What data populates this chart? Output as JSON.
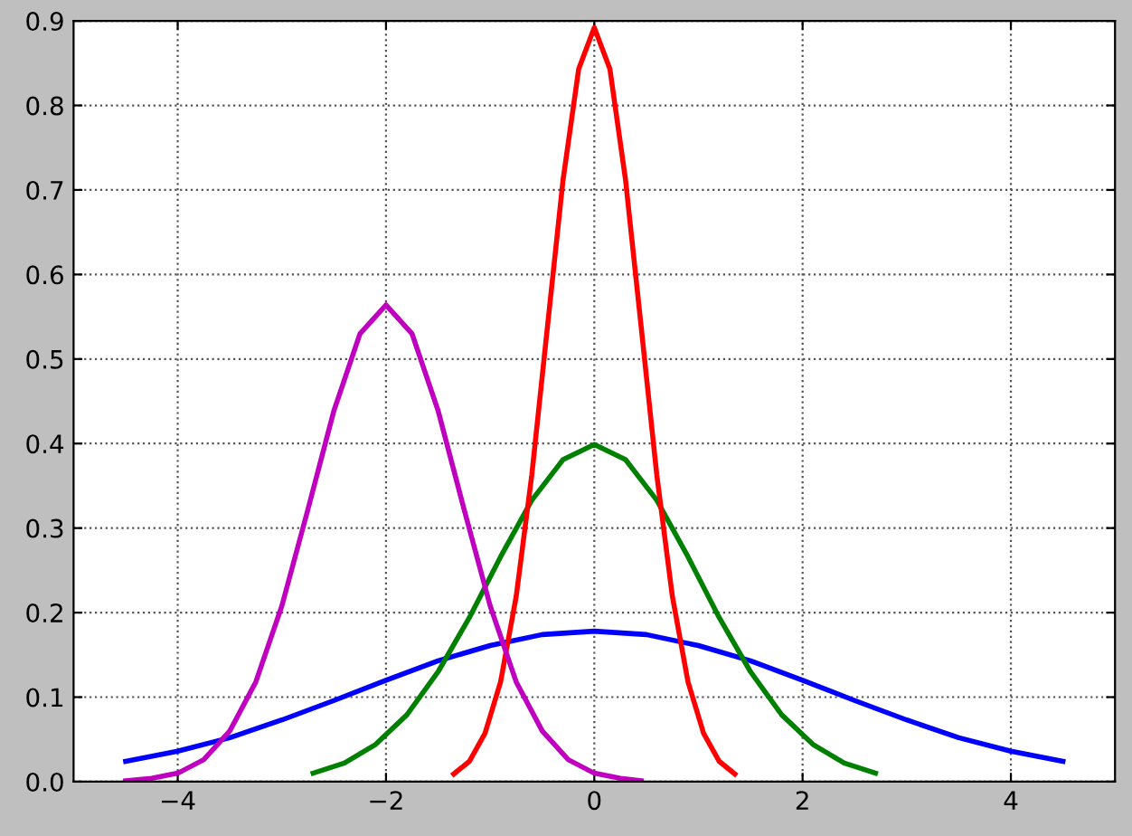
{
  "chart_data": {
    "type": "line",
    "xlim": [
      -5,
      5
    ],
    "xticks": [
      {
        "value": -4,
        "label": "−4"
      },
      {
        "value": -2,
        "label": "−2"
      },
      0,
      2,
      4
    ],
    "ylim": [
      0,
      0.9
    ],
    "yticks": [
      {
        "value": 0,
        "label": "0.0"
      },
      0.1,
      0.2,
      0.3,
      0.4,
      0.5,
      0.6,
      0.7,
      0.8,
      0.9
    ],
    "grid": true,
    "line_style": "solid",
    "series": [
      {
        "color": "#0000ff",
        "x": [
          -4.5,
          -4,
          -3.5,
          -3,
          -2.5,
          -2,
          -1.5,
          -1,
          -0.5,
          0,
          0.5,
          1,
          1.5,
          2,
          2.5,
          3,
          3.5,
          4,
          4.5
        ],
        "values": [
          0.024,
          0.036,
          0.052,
          0.073,
          0.096,
          0.12,
          0.143,
          0.161,
          0.174,
          0.178,
          0.174,
          0.161,
          0.143,
          0.12,
          0.096,
          0.073,
          0.052,
          0.036,
          0.024
        ]
      },
      {
        "color": "#008000",
        "x": [
          -2.7,
          -2.4,
          -2.1,
          -1.8,
          -1.5,
          -1.2,
          -0.9,
          -0.6,
          -0.3,
          0,
          0.3,
          0.6,
          0.9,
          1.2,
          1.5,
          1.8,
          2.1,
          2.4,
          2.7
        ],
        "values": [
          0.01,
          0.022,
          0.044,
          0.079,
          0.13,
          0.194,
          0.266,
          0.333,
          0.381,
          0.399,
          0.381,
          0.333,
          0.266,
          0.194,
          0.13,
          0.079,
          0.044,
          0.022,
          0.01
        ]
      },
      {
        "color": "#ff0000",
        "x": [
          -1.35,
          -1.2,
          -1.05,
          -0.9,
          -0.75,
          -0.6,
          -0.45,
          -0.3,
          -0.15,
          0,
          0.15,
          0.3,
          0.45,
          0.6,
          0.75,
          0.9,
          1.05,
          1.2,
          1.35
        ],
        "values": [
          0.009,
          0.024,
          0.057,
          0.118,
          0.219,
          0.363,
          0.538,
          0.712,
          0.843,
          0.892,
          0.843,
          0.712,
          0.538,
          0.363,
          0.219,
          0.118,
          0.057,
          0.024,
          0.009
        ]
      },
      {
        "color": "#bf00bf",
        "x": [
          -4.5,
          -4.25,
          -4,
          -3.75,
          -3.5,
          -3.25,
          -3,
          -2.75,
          -2.5,
          -2.25,
          -2,
          -1.75,
          -1.5,
          -1.25,
          -1,
          -0.75,
          -0.5,
          -0.25,
          0,
          0.25,
          0.45
        ],
        "values": [
          0.001,
          0.004,
          0.01,
          0.026,
          0.06,
          0.118,
          0.208,
          0.322,
          0.439,
          0.53,
          0.564,
          0.53,
          0.439,
          0.322,
          0.208,
          0.118,
          0.06,
          0.026,
          0.01,
          0.004,
          0.001
        ]
      }
    ]
  }
}
